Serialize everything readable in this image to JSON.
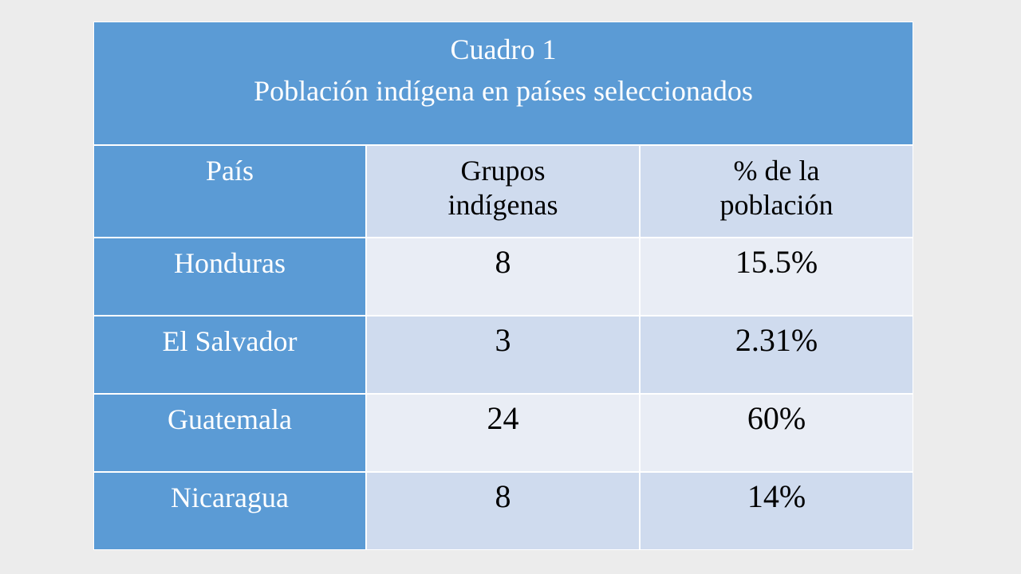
{
  "table": {
    "title": [
      "Cuadro 1",
      "Población indígena en países seleccionados"
    ],
    "header": [
      "País",
      "Grupos indígenas",
      "% de la población"
    ],
    "rows": [
      [
        "Honduras",
        "8",
        "15.5%"
      ],
      [
        "El Salvador",
        "3",
        "2.31%"
      ],
      [
        "Guatemala",
        "24",
        "60%"
      ],
      [
        "Nicaragua",
        "8",
        "14%"
      ]
    ]
  }
}
